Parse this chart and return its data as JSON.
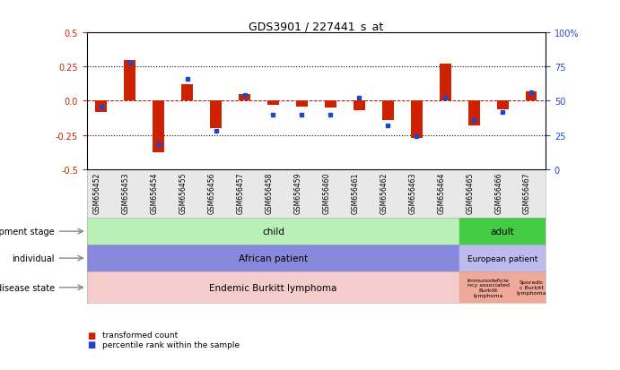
{
  "title": "GDS3901 / 227441_s_at",
  "samples": [
    "GSM656452",
    "GSM656453",
    "GSM656454",
    "GSM656455",
    "GSM656456",
    "GSM656457",
    "GSM656458",
    "GSM656459",
    "GSM656460",
    "GSM656461",
    "GSM656462",
    "GSM656463",
    "GSM656464",
    "GSM656465",
    "GSM656466",
    "GSM656467"
  ],
  "transformed_count": [
    -0.08,
    0.3,
    -0.38,
    0.12,
    -0.2,
    0.05,
    -0.03,
    -0.04,
    -0.05,
    -0.07,
    -0.14,
    -0.27,
    0.27,
    -0.18,
    -0.06,
    0.07
  ],
  "percentile_rank": [
    46,
    78,
    18,
    66,
    28,
    54,
    40,
    40,
    40,
    52,
    32,
    24,
    52,
    36,
    42,
    56
  ],
  "ylim": [
    -0.5,
    0.5
  ],
  "yticks": [
    -0.5,
    -0.25,
    0.0,
    0.25,
    0.5
  ],
  "right_yticks": [
    0,
    25,
    50,
    75,
    100
  ],
  "bar_color": "#cc2200",
  "dot_color": "#2244cc",
  "development_stage": {
    "child": [
      0,
      12
    ],
    "adult": [
      13,
      15
    ],
    "child_color": "#b8f0b8",
    "adult_color": "#44cc44"
  },
  "individual": {
    "african": [
      0,
      12
    ],
    "european": [
      13,
      15
    ],
    "african_color": "#8888dd",
    "european_color": "#bbbbee"
  },
  "disease_state": {
    "endemic": [
      0,
      12
    ],
    "immunodeficiency": [
      13,
      14
    ],
    "sporadic": [
      15,
      15
    ],
    "endemic_color": "#f5cccc",
    "immunodeficiency_color": "#f0a898",
    "sporadic_color": "#f0a898"
  },
  "annotation_rows": [
    "development stage",
    "individual",
    "disease state"
  ],
  "tick_color_left": "#cc2200",
  "tick_color_right": "#2244cc",
  "bg_color": "#ffffff",
  "dotted_line_color": "#000000",
  "zero_line_color": "#cc0000"
}
